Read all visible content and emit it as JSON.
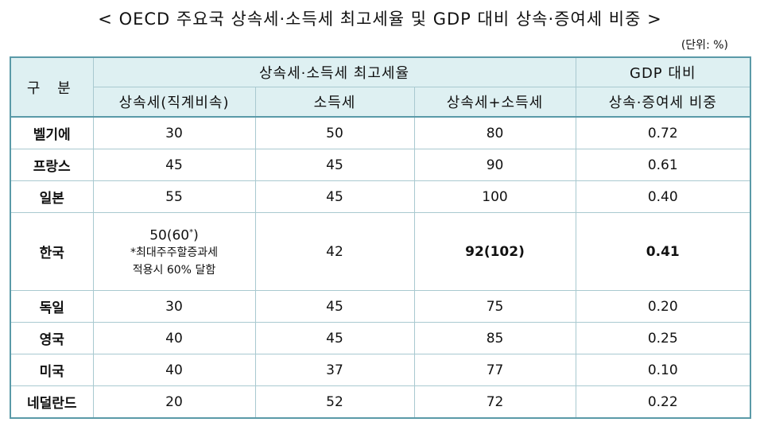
{
  "title": "< OECD 주요국 상속세·소득세 최고세율 및 GDP 대비 상속·증여세 비중 >",
  "unit": "(단위: %)",
  "headers": {
    "gubun": "구 분",
    "top_rate_group": "상속세·소득세 최고세율",
    "gdp_group": "GDP 대비",
    "inheritance": "상속세(직계비속)",
    "income": "소득세",
    "sum": "상속세+소득세",
    "gdp_share": "상속·증여세 비중"
  },
  "rows": [
    {
      "country": "벨기에",
      "inheritance": "30",
      "income": "50",
      "sum": "80",
      "gdp": "0.72"
    },
    {
      "country": "프랑스",
      "inheritance": "45",
      "income": "45",
      "sum": "90",
      "gdp": "0.61"
    },
    {
      "country": "일본",
      "inheritance": "55",
      "income": "45",
      "sum": "100",
      "gdp": "0.40"
    },
    {
      "country": "한국",
      "inheritance": "50(60",
      "inheritance_mark": "*",
      "inheritance_close": ")",
      "note_line1": "*최대주주할증과세",
      "note_line2": "적용시 60% 달함",
      "income": "42",
      "sum": "92(102)",
      "gdp": "0.41"
    },
    {
      "country": "독일",
      "inheritance": "30",
      "income": "45",
      "sum": "75",
      "gdp": "0.20"
    },
    {
      "country": "영국",
      "inheritance": "40",
      "income": "45",
      "sum": "85",
      "gdp": "0.25"
    },
    {
      "country": "미국",
      "inheritance": "40",
      "income": "37",
      "sum": "77",
      "gdp": "0.10"
    },
    {
      "country": "네덜란드",
      "inheritance": "20",
      "income": "52",
      "sum": "72",
      "gdp": "0.22"
    }
  ]
}
